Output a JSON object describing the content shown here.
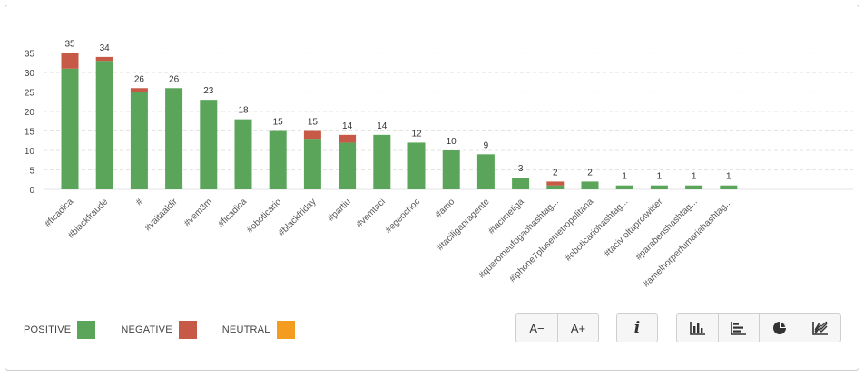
{
  "chart_data": {
    "type": "bar",
    "stacked": true,
    "categories": [
      "#ficadica",
      "#blackfraude",
      "#",
      "#vaitaaldir",
      "#vem3m",
      "#ficadica",
      "#oboticario",
      "#blackfriday",
      "#partiu",
      "#vemtaci",
      "#egeochoc",
      "#amo",
      "#taciligapragente",
      "#tacimeliga",
      "#queromeufogaohashtag...",
      "#iphone7plusemetropolitana",
      "#oboticariohashtag...",
      "#taciv oltaprotwitter",
      "#parabenshashtag...",
      "#amelhorperfumariahashtag..."
    ],
    "series": [
      {
        "name": "POSITIVE",
        "color": "#5ba55a",
        "values": [
          31,
          33,
          25,
          26,
          23,
          18,
          15,
          13,
          12,
          14,
          12,
          10,
          9,
          3,
          1,
          2,
          1,
          1,
          1,
          1
        ]
      },
      {
        "name": "NEGATIVE",
        "color": "#c75a46",
        "values": [
          4,
          1,
          1,
          0,
          0,
          0,
          0,
          2,
          2,
          0,
          0,
          0,
          0,
          0,
          1,
          0,
          0,
          0,
          0,
          0
        ]
      },
      {
        "name": "NEUTRAL",
        "color": "#f39c1f",
        "values": [
          0,
          0,
          0,
          0,
          0,
          0,
          0,
          0,
          0,
          0,
          0,
          0,
          0,
          0,
          0,
          0,
          0,
          0,
          0,
          0
        ]
      }
    ],
    "totals": [
      "35",
      "34",
      "26",
      "26",
      "23",
      "18",
      "15",
      "15",
      "14",
      "14",
      "12",
      "10",
      "9",
      "3",
      "2",
      "2",
      "1",
      "1",
      "1",
      "1"
    ],
    "y_ticks": [
      "0",
      "5",
      "10",
      "15",
      "20",
      "25",
      "30",
      "35"
    ],
    "ylim": [
      0,
      37
    ],
    "grid": true,
    "legend_placement": "bottom-left"
  },
  "legend": {
    "items": [
      {
        "label": "POSITIVE",
        "color": "#5ba55a"
      },
      {
        "label": "NEGATIVE",
        "color": "#c75a46"
      },
      {
        "label": "NEUTRAL",
        "color": "#f39c1f"
      }
    ]
  },
  "toolbar": {
    "font_decrease_label": "A−",
    "font_increase_label": "A+",
    "info_label": "i",
    "chart_type_icons": [
      "bar-chart-icon",
      "horizontal-bar-chart-icon",
      "pie-chart-icon",
      "area-chart-icon"
    ]
  }
}
